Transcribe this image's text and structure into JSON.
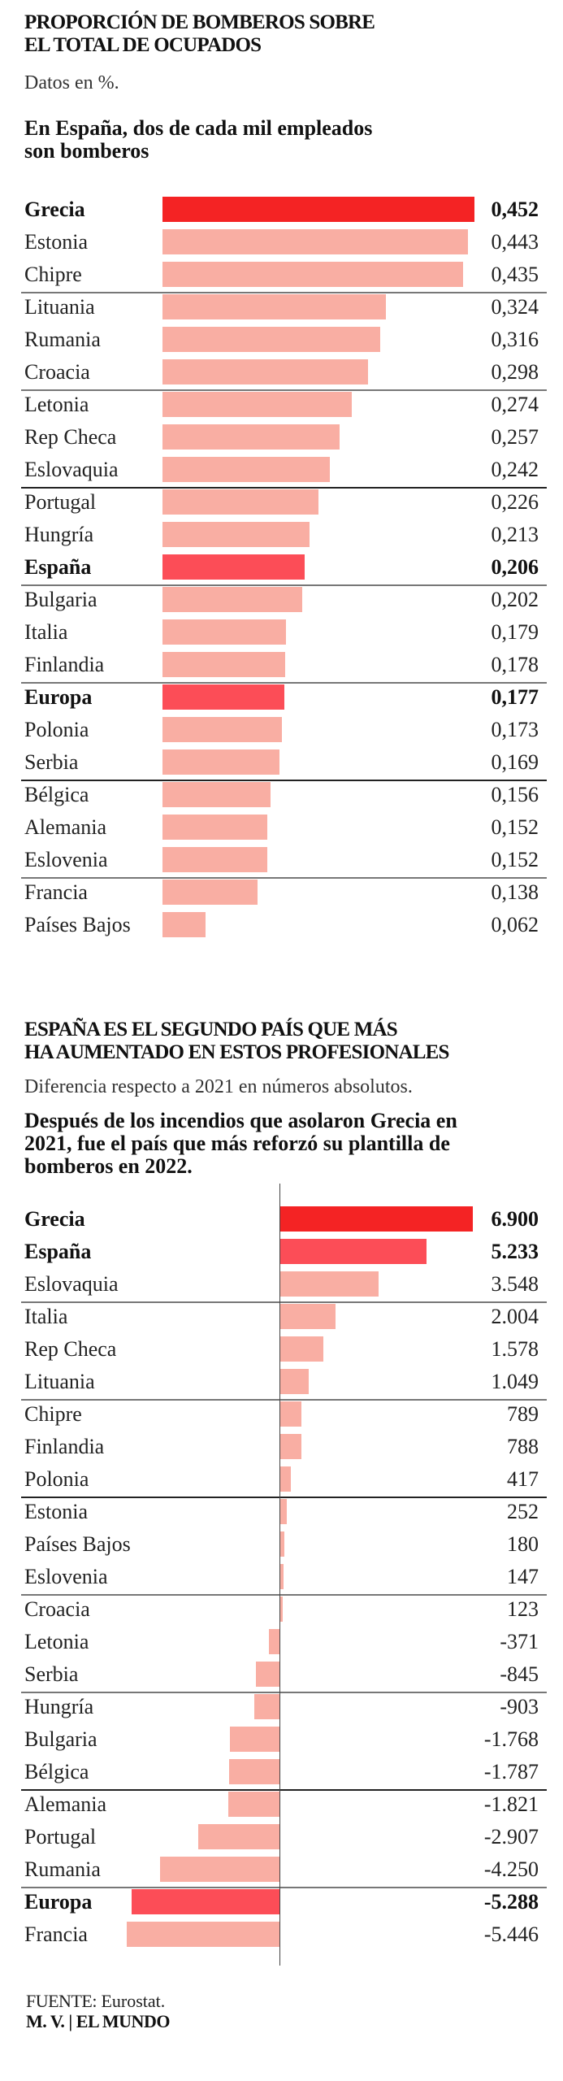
{
  "colors": {
    "highlight_primary": "#f42324",
    "highlight_secondary": "#fc4d57",
    "bar_default": "#f9aea3",
    "separator": "#777777"
  },
  "chart_data": [
    {
      "type": "bar",
      "orientation": "horizontal",
      "title": "PROPORCIÓN DE BOMBEROS SOBRE EL TOTAL DE OCUPADOS",
      "title_lines": [
        "PROPORCIÓN DE BOMBEROS SOBRE",
        "EL TOTAL DE OCUPADOS"
      ],
      "subtitle": "Datos en %.",
      "headline_lines": [
        "En España, dos de cada mil empleados",
        "son bomberos"
      ],
      "xlabel": "",
      "ylabel": "",
      "xlim": [
        0,
        0.452
      ],
      "grid": false,
      "unit": "%",
      "categories": [
        "Grecia",
        "Estonia",
        "Chipre",
        "Lituania",
        "Rumania",
        "Croacia",
        "Letonia",
        "Rep Checa",
        "Eslovaquia",
        "Portugal",
        "Hungría",
        "España",
        "Bulgaria",
        "Italia",
        "Finlandia",
        "Europa",
        "Polonia",
        "Serbia",
        "Bélgica",
        "Alemania",
        "Eslovenia",
        "Francia",
        "Países Bajos"
      ],
      "values": [
        0.452,
        0.443,
        0.435,
        0.324,
        0.316,
        0.298,
        0.274,
        0.257,
        0.242,
        0.226,
        0.213,
        0.206,
        0.202,
        0.179,
        0.178,
        0.177,
        0.173,
        0.169,
        0.156,
        0.152,
        0.152,
        0.138,
        0.062
      ],
      "value_labels": [
        "0,452",
        "0,443",
        "0,435",
        "0,324",
        "0,316",
        "0,298",
        "0,274",
        "0,257",
        "0,242",
        "0,226",
        "0,213",
        "0,206",
        "0,202",
        "0,179",
        "0,178",
        "0,177",
        "0,173",
        "0,169",
        "0,156",
        "0,152",
        "0,152",
        "0,138",
        "0,062"
      ],
      "highlight": {
        "Grecia": "primary",
        "España": "secondary",
        "Europa": "secondary"
      },
      "bold": [
        "Grecia",
        "España",
        "Europa"
      ],
      "separators_after_index": [
        2,
        5,
        8,
        11,
        14,
        17,
        20
      ]
    },
    {
      "type": "bar",
      "orientation": "horizontal",
      "title": "ESPAÑA ES EL SEGUNDO PAÍS QUE MÁS HA AUMENTADO EN ESTOS PROFESIONALES",
      "title_lines": [
        "ESPAÑA ES EL SEGUNDO PAÍS QUE MÁS",
        "HA AUMENTADO EN ESTOS PROFESIONALES"
      ],
      "subtitle": "Diferencia respecto a 2021 en números absolutos.",
      "headline_lines": [
        "Después de los incendios que asolaron Grecia en",
        "2021, fue el país que más reforzó su plantilla de",
        "bomberos en 2022."
      ],
      "xlabel": "",
      "ylabel": "",
      "xlim": [
        -5446,
        6900
      ],
      "grid": false,
      "categories": [
        "Grecia",
        "España",
        "Eslovaquia",
        "Italia",
        "Rep Checa",
        "Lituania",
        "Chipre",
        "Finlandia",
        "Polonia",
        "Estonia",
        "Países Bajos",
        "Eslovenia",
        "Croacia",
        "Letonia",
        "Serbia",
        "Hungría",
        "Bulgaria",
        "Bélgica",
        "Alemania",
        "Portugal",
        "Rumania",
        "Europa",
        "Francia"
      ],
      "values": [
        6900,
        5233,
        3548,
        2004,
        1578,
        1049,
        789,
        788,
        417,
        252,
        180,
        147,
        123,
        -371,
        -845,
        -903,
        -1768,
        -1787,
        -1821,
        -2907,
        -4250,
        -5288,
        -5446
      ],
      "value_labels": [
        "6.900",
        "5.233",
        "3.548",
        "2.004",
        "1.578",
        "1.049",
        "789",
        "788",
        "417",
        "252",
        "180",
        "147",
        "123",
        "-371",
        "-845",
        "-903",
        "-1.768",
        "-1.787",
        "-1.821",
        "-2.907",
        "-4.250",
        "-5.288",
        "-5.446"
      ],
      "highlight": {
        "Grecia": "primary",
        "España": "secondary",
        "Europa": "secondary"
      },
      "bold": [
        "Grecia",
        "España",
        "Europa"
      ],
      "separators_after_index": [
        2,
        5,
        8,
        11,
        14,
        17,
        20
      ]
    }
  ],
  "footer": {
    "source_label": "FUENTE:",
    "source_value": " Eurostat.",
    "credit": "M. V. | EL MUNDO"
  }
}
